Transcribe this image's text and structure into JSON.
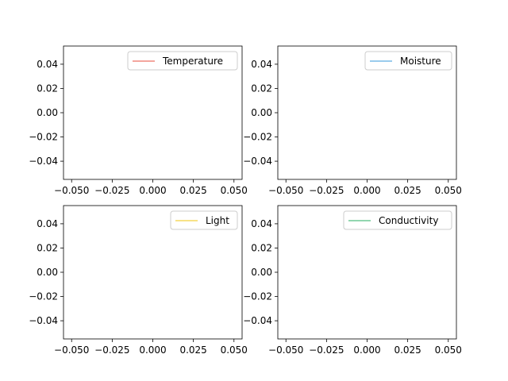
{
  "chart_data": [
    {
      "type": "line",
      "panel": "top-left",
      "series": [
        {
          "name": "Temperature",
          "x": [],
          "y": [],
          "color": "#e74c3c"
        }
      ],
      "xlim": [
        -0.055,
        0.055
      ],
      "ylim": [
        -0.055,
        0.055
      ],
      "xticks": [
        "−0.050",
        "−0.025",
        "0.000",
        "0.025",
        "0.050"
      ],
      "yticks": [
        "0.04",
        "0.02",
        "0.00",
        "−0.02",
        "−0.04"
      ],
      "legend": "top-right",
      "grid": false
    },
    {
      "type": "line",
      "panel": "top-right",
      "series": [
        {
          "name": "Moisture",
          "x": [],
          "y": [],
          "color": "#3498db"
        }
      ],
      "xlim": [
        -0.055,
        0.055
      ],
      "ylim": [
        -0.055,
        0.055
      ],
      "xticks": [
        "−0.050",
        "−0.025",
        "0.000",
        "0.025",
        "0.050"
      ],
      "yticks": [
        "0.04",
        "0.02",
        "0.00",
        "−0.02",
        "−0.04"
      ],
      "legend": "top-right",
      "grid": false
    },
    {
      "type": "line",
      "panel": "bottom-left",
      "series": [
        {
          "name": "Light",
          "x": [],
          "y": [],
          "color": "#f1c40f"
        }
      ],
      "xlim": [
        -0.055,
        0.055
      ],
      "ylim": [
        -0.055,
        0.055
      ],
      "xticks": [
        "−0.050",
        "−0.025",
        "0.000",
        "0.025",
        "0.050"
      ],
      "yticks": [
        "0.04",
        "0.02",
        "0.00",
        "−0.02",
        "−0.04"
      ],
      "legend": "top-right",
      "grid": false
    },
    {
      "type": "line",
      "panel": "bottom-right",
      "series": [
        {
          "name": "Conductivity",
          "x": [],
          "y": [],
          "color": "#27ae60"
        }
      ],
      "xlim": [
        -0.055,
        0.055
      ],
      "ylim": [
        -0.055,
        0.055
      ],
      "xticks": [
        "−0.050",
        "−0.025",
        "0.000",
        "0.025",
        "0.050"
      ],
      "yticks": [
        "0.04",
        "0.02",
        "0.00",
        "−0.02",
        "−0.04"
      ],
      "legend": "top-right",
      "grid": false
    }
  ]
}
